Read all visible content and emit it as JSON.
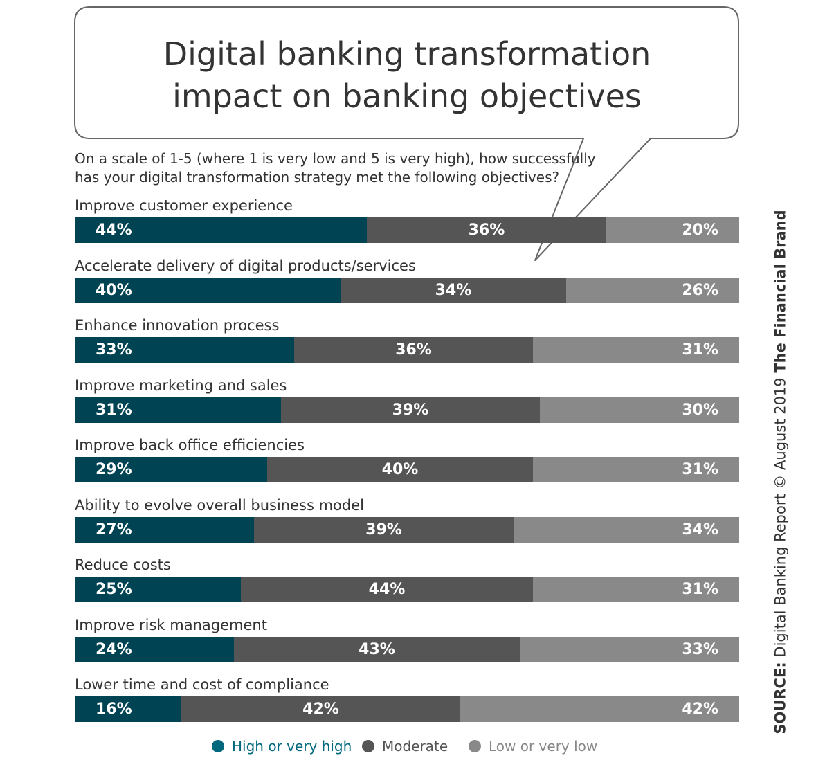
{
  "chart_data": {
    "type": "bar",
    "stacked": true,
    "orientation": "horizontal",
    "title": "Digital banking transformation impact on banking objectives",
    "title_lines": [
      "Digital banking transformation",
      "impact on banking objectives"
    ],
    "subtitle_lines": [
      "On a scale of 1-5 (where 1 is very low and 5 is very high), how successfully",
      "has your digital transformation strategy met the following objectives?"
    ],
    "categories": [
      "Improve customer experience",
      "Accelerate delivery of digital products/services",
      "Enhance innovation process",
      "Improve marketing and sales",
      "Improve back office efficiencies",
      "Ability to evolve overall business model",
      "Reduce costs",
      "Improve risk management",
      "Lower time and cost of compliance"
    ],
    "series": [
      {
        "name": "High or very high",
        "color": "#004352",
        "values": [
          44,
          40,
          33,
          31,
          29,
          27,
          25,
          24,
          16
        ]
      },
      {
        "name": "Moderate",
        "color": "#555555",
        "values": [
          36,
          34,
          36,
          39,
          40,
          39,
          44,
          43,
          42
        ]
      },
      {
        "name": "Low or very low",
        "color": "#898989",
        "values": [
          20,
          26,
          31,
          30,
          31,
          34,
          31,
          33,
          42
        ]
      }
    ],
    "legend_position": "bottom",
    "value_unit": "%",
    "source_label": "SOURCE:",
    "source_text": "Digital Banking Report © August 2019",
    "source_brand": "The Financial Brand"
  }
}
